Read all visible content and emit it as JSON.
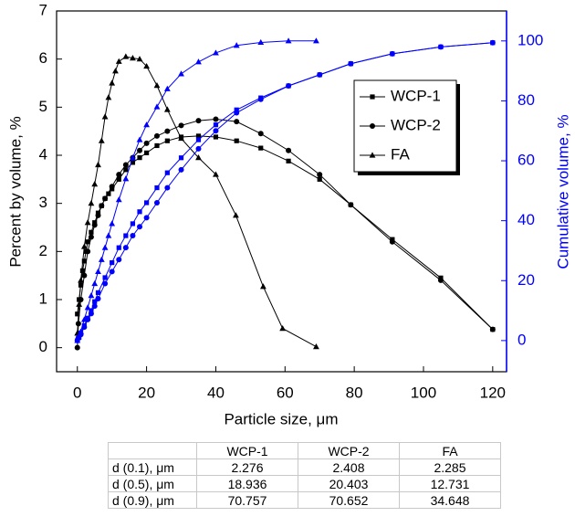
{
  "chart_data": {
    "type": "line",
    "x_label": "Particle size,  μm",
    "y_label": "Percent by volume, %",
    "y2_label": "Cumulative volume, %",
    "xlim": [
      -6,
      124
    ],
    "xticks": [
      0,
      20,
      40,
      60,
      80,
      100,
      120
    ],
    "ylim": [
      -0.5,
      7
    ],
    "yticks": [
      0,
      1,
      2,
      3,
      4,
      5,
      6,
      7
    ],
    "y2lim": [
      -10.4,
      110
    ],
    "y2ticks": [
      0,
      20,
      40,
      60,
      80,
      100
    ],
    "y2_color": "#0000ff",
    "legend": "upper right",
    "series": [
      {
        "name": "WCP-1",
        "color": "#000000",
        "marker": "square",
        "x": [
          0,
          0.5,
          1,
          1.5,
          2,
          2.5,
          3,
          4,
          5,
          6,
          7,
          8,
          9,
          10,
          12,
          14,
          16,
          18,
          20,
          23,
          26,
          30,
          35,
          40,
          46,
          53,
          61,
          70,
          79,
          91,
          105,
          120
        ],
        "values": [
          0.7,
          1.0,
          1.3,
          1.6,
          1.8,
          2.0,
          2.2,
          2.4,
          2.6,
          2.8,
          2.95,
          3.1,
          3.2,
          3.3,
          3.5,
          3.7,
          3.85,
          3.95,
          4.05,
          4.2,
          4.3,
          4.38,
          4.4,
          4.38,
          4.3,
          4.15,
          3.88,
          3.5,
          2.97,
          2.25,
          1.45,
          0.38
        ]
      },
      {
        "name": "WCP-2",
        "color": "#000000",
        "marker": "circle",
        "x": [
          0,
          0.3,
          1,
          2,
          3,
          4,
          5,
          6,
          7,
          8,
          10,
          12,
          14,
          16,
          18,
          20,
          23,
          26,
          30,
          35,
          40,
          46,
          53,
          61,
          70,
          79,
          91,
          105,
          120
        ],
        "values": [
          0,
          0.5,
          1.0,
          1.5,
          2.0,
          2.3,
          2.55,
          2.75,
          2.95,
          3.1,
          3.35,
          3.6,
          3.8,
          3.95,
          4.1,
          4.25,
          4.4,
          4.5,
          4.62,
          4.72,
          4.75,
          4.7,
          4.45,
          4.1,
          3.6,
          2.97,
          2.2,
          1.4,
          0.38
        ]
      },
      {
        "name": "FA",
        "color": "#000000",
        "marker": "triangle",
        "x": [
          0,
          0.5,
          1,
          2,
          3,
          4,
          5,
          6,
          7,
          8,
          9,
          10,
          11,
          12,
          14,
          16,
          18,
          20,
          23,
          26,
          30,
          35,
          40,
          45.8,
          53.7,
          59.3,
          69
        ],
        "values": [
          0.3,
          0.9,
          1.4,
          2.1,
          2.6,
          3.0,
          3.4,
          3.8,
          4.3,
          4.8,
          5.2,
          5.5,
          5.75,
          5.95,
          6.05,
          6.02,
          6.0,
          5.85,
          5.45,
          4.95,
          4.35,
          3.95,
          3.6,
          2.75,
          1.27,
          0.4,
          0.02
        ]
      },
      {
        "color": "#0000ff",
        "marker": "square",
        "axis": "y2",
        "x": [
          0,
          0.5,
          1,
          2,
          3,
          4,
          5,
          6,
          8,
          10,
          12,
          14,
          16,
          18,
          20,
          23,
          26,
          30,
          35,
          40,
          46,
          53,
          61,
          70,
          79,
          91,
          105,
          120
        ],
        "values": [
          0,
          1,
          2.5,
          5,
          7.5,
          10,
          13,
          16,
          21,
          26,
          31,
          35,
          39,
          43,
          46,
          51,
          56,
          61,
          67,
          72,
          77,
          81,
          85,
          88.7,
          92.4,
          95.7,
          98,
          99.4
        ]
      },
      {
        "color": "#0000ff",
        "marker": "circle",
        "axis": "y2",
        "x": [
          0,
          0.3,
          1,
          2,
          3,
          4,
          5,
          6,
          8,
          10,
          12,
          14,
          16,
          18,
          20,
          23,
          26,
          30,
          35,
          40,
          46,
          53,
          61,
          70,
          79,
          91,
          105,
          120
        ],
        "values": [
          0,
          1,
          2,
          4.5,
          7,
          9,
          11.5,
          14,
          19,
          23,
          27,
          31,
          35,
          38,
          41,
          46,
          51,
          57,
          64,
          70,
          76,
          80.5,
          85,
          88.7,
          92.4,
          95.7,
          98,
          99.4
        ]
      },
      {
        "color": "#0000ff",
        "marker": "triangle",
        "axis": "y2",
        "x": [
          0,
          1,
          2,
          3,
          4,
          5,
          6,
          7,
          8,
          9,
          10,
          12,
          14,
          16,
          18,
          20,
          23,
          26,
          30,
          35,
          40,
          46,
          53,
          61,
          69
        ],
        "values": [
          0,
          3,
          7,
          11,
          15,
          19,
          23,
          27,
          31,
          35,
          39,
          47,
          54,
          61,
          67,
          72,
          78,
          84,
          89,
          93,
          96,
          98.5,
          99.5,
          100,
          100
        ]
      }
    ]
  },
  "table": {
    "columns": [
      "WCP-1",
      "WCP-2",
      "FA"
    ],
    "rows": [
      {
        "label": "d (0.1), μm",
        "values": [
          2.276,
          2.408,
          2.285
        ]
      },
      {
        "label": "d (0.5), μm",
        "values": [
          18.936,
          20.403,
          12.731
        ]
      },
      {
        "label": "d (0.9), μm",
        "values": [
          70.757,
          70.652,
          34.648
        ]
      }
    ]
  }
}
